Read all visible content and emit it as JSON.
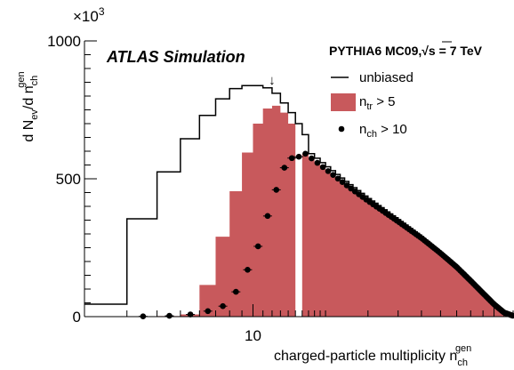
{
  "chart_data": {
    "type": "histogram",
    "title": "",
    "annotations": {
      "experiment": "ATLAS Simulation",
      "generator_prefix": "PYTHIA6 MC09,",
      "generator_sqrt": "√s",
      "generator_energy": " = 7 TeV",
      "arrow": "↓",
      "arrow_x": 12
    },
    "xlabel": {
      "text": "charged-particle multiplicity n",
      "sub": "ch",
      "sup": "gen"
    },
    "ylabel": {
      "text": "d N",
      "sub1": "ev",
      "mid": "/d n",
      "sub2": "ch",
      "sup2": "gen"
    },
    "x_scale": "log",
    "xlim": [
      2,
      120
    ],
    "ylim": [
      0,
      1000
    ],
    "y_multiplier": "×10",
    "y_multiplier_exp": "3",
    "y_ticks": [
      0,
      500,
      1000
    ],
    "x_ticks_labeled": [
      10
    ],
    "x_tick_labels": [
      "10"
    ],
    "legend": {
      "position": "top-right",
      "entries": [
        {
          "label": "unbiased",
          "sub": "",
          "suffix": "",
          "marker": "line"
        },
        {
          "label": "n",
          "sub": "tr",
          "suffix": " > 5",
          "marker": "box"
        },
        {
          "label": "n",
          "sub": "ch",
          "suffix": " > 10",
          "marker": "dot"
        }
      ]
    },
    "colors": {
      "fill": "#c8595c",
      "line": "#000000",
      "points": "#000000"
    },
    "series": [
      {
        "name": "unbiased",
        "style": "step-line",
        "x": [
          2,
          3,
          4,
          5,
          6,
          7,
          8,
          9,
          10,
          11,
          12,
          13,
          14,
          15,
          16
        ],
        "values": [
          45,
          355,
          525,
          645,
          730,
          790,
          827,
          838,
          838,
          830,
          810,
          775,
          740,
          700,
          660
        ]
      },
      {
        "name": "n_tr > 5",
        "style": "filled-histogram",
        "x": [
          2,
          3,
          4,
          5,
          6,
          7,
          8,
          9,
          10,
          11,
          12,
          13,
          14
        ],
        "values": [
          0,
          0,
          2,
          8,
          115,
          290,
          455,
          595,
          700,
          755,
          765,
          740,
          700
        ]
      },
      {
        "name": "n_ch > 10",
        "style": "points",
        "x": [
          3.5,
          4.5,
          5.5,
          6.5,
          7.5,
          8.5,
          9.5,
          10.5,
          11.5,
          12.5,
          13.5,
          14.5,
          15.5
        ],
        "values": [
          1,
          3,
          8,
          20,
          38,
          90,
          170,
          255,
          365,
          460,
          540,
          575,
          580
        ]
      }
    ],
    "tail": {
      "comment_free_shape": true,
      "x": [
        16,
        20,
        25,
        30,
        40,
        50,
        60,
        70,
        80,
        90,
        100,
        110,
        120
      ],
      "values": [
        600,
        535,
        470,
        420,
        345,
        285,
        230,
        180,
        130,
        85,
        45,
        15,
        3
      ]
    }
  }
}
